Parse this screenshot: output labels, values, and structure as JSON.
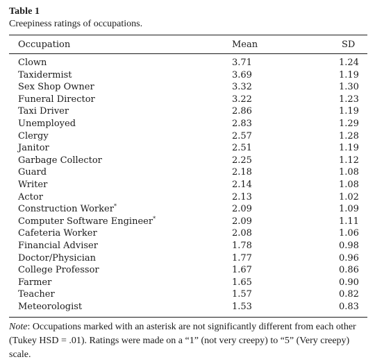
{
  "table": {
    "label": "Table 1",
    "caption": "Creepiness ratings of occupations.",
    "columns": {
      "occupation": "Occupation",
      "mean": "Mean",
      "sd": "SD"
    },
    "rows": [
      {
        "occupation": "Clown",
        "mark": "",
        "mean": "3.71",
        "sd": "1.24"
      },
      {
        "occupation": "Taxidermist",
        "mark": "",
        "mean": "3.69",
        "sd": "1.19"
      },
      {
        "occupation": "Sex Shop Owner",
        "mark": "",
        "mean": "3.32",
        "sd": "1.30"
      },
      {
        "occupation": "Funeral Director",
        "mark": "",
        "mean": "3.22",
        "sd": "1.23"
      },
      {
        "occupation": "Taxi Driver",
        "mark": "",
        "mean": "2.86",
        "sd": "1.19"
      },
      {
        "occupation": "Unemployed",
        "mark": "",
        "mean": "2.83",
        "sd": "1.29"
      },
      {
        "occupation": "Clergy",
        "mark": "",
        "mean": "2.57",
        "sd": "1.28"
      },
      {
        "occupation": "Janitor",
        "mark": "",
        "mean": "2.51",
        "sd": "1.19"
      },
      {
        "occupation": "Garbage Collector",
        "mark": "",
        "mean": "2.25",
        "sd": "1.12"
      },
      {
        "occupation": "Guard",
        "mark": "",
        "mean": "2.18",
        "sd": "1.08"
      },
      {
        "occupation": "Writer",
        "mark": "",
        "mean": "2.14",
        "sd": "1.08"
      },
      {
        "occupation": "Actor",
        "mark": "",
        "mean": "2.13",
        "sd": "1.02"
      },
      {
        "occupation": "Construction Worker",
        "mark": "*",
        "mean": "2.09",
        "sd": "1.09"
      },
      {
        "occupation": "Computer Software Engineer",
        "mark": "*",
        "mean": "2.09",
        "sd": "1.11"
      },
      {
        "occupation": "Cafeteria Worker",
        "mark": "",
        "mean": "2.08",
        "sd": "1.06"
      },
      {
        "occupation": "Financial Adviser",
        "mark": "",
        "mean": "1.78",
        "sd": "0.98"
      },
      {
        "occupation": "Doctor/Physician",
        "mark": "",
        "mean": "1.77",
        "sd": "0.96"
      },
      {
        "occupation": "College Professor",
        "mark": "",
        "mean": "1.67",
        "sd": "0.86"
      },
      {
        "occupation": "Farmer",
        "mark": "",
        "mean": "1.65",
        "sd": "0.90"
      },
      {
        "occupation": "Teacher",
        "mark": "",
        "mean": "1.57",
        "sd": "0.82"
      },
      {
        "occupation": "Meteorologist",
        "mark": "",
        "mean": "1.53",
        "sd": "0.83"
      }
    ],
    "note": {
      "label": "Note",
      "text": ": Occupations marked with an asterisk are not significantly different from each other (Tukey HSD = .01). Ratings were made on a “1” (not very creepy) to “5” (Very creepy) scale."
    }
  }
}
